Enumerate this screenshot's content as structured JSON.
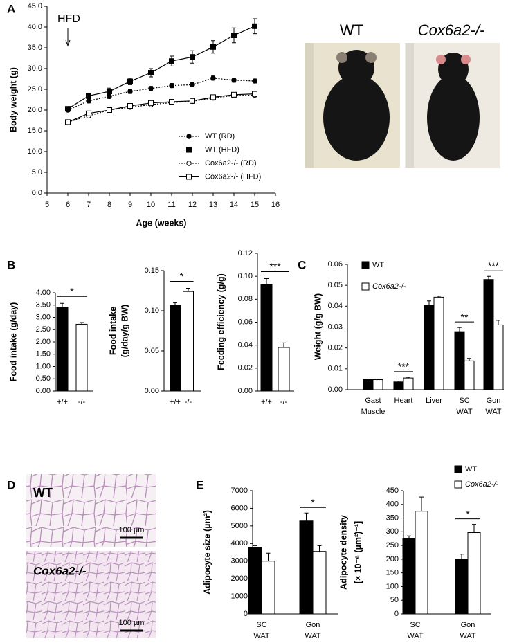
{
  "chart_data": [
    {
      "type": "line",
      "panel": "A",
      "xlabel": "Age (weeks)",
      "ylabel": "Body weight (g)",
      "annotation": "HFD",
      "xlim": [
        5,
        16
      ],
      "xticks": [
        5,
        6,
        7,
        8,
        9,
        10,
        11,
        12,
        13,
        14,
        15,
        16
      ],
      "ylim": [
        0,
        45
      ],
      "yticks": [
        {
          "value": 0,
          "label": "0.0"
        },
        {
          "value": 5,
          "label": "5.0"
        },
        {
          "value": 10,
          "label": "10.0"
        },
        {
          "value": 15,
          "label": "15.0"
        },
        {
          "value": 20,
          "label": "20.0"
        },
        {
          "value": 25,
          "label": "25.0"
        },
        {
          "value": 30,
          "label": "30.0"
        },
        {
          "value": 35,
          "label": "35.0"
        },
        {
          "value": 40,
          "label": "40.0"
        },
        {
          "value": 45,
          "label": "45.0"
        }
      ],
      "x": [
        6,
        7,
        8,
        9,
        10,
        11,
        12,
        13,
        14,
        15
      ],
      "series": [
        {
          "name": "WT (RD)",
          "color": "#000000",
          "marker": "circle",
          "filled": true,
          "dashed": true,
          "values": [
            20.0,
            22.2,
            23.3,
            24.5,
            25.2,
            25.9,
            26.1,
            27.7,
            27.2,
            27.0
          ],
          "errors": [
            0.4,
            0.5,
            0.5,
            0.5,
            0.5,
            0.5,
            0.5,
            0.5,
            0.5,
            0.5
          ]
        },
        {
          "name": "WT (HFD)",
          "color": "#000000",
          "marker": "square",
          "filled": true,
          "dashed": false,
          "values": [
            20.3,
            23.4,
            24.5,
            26.9,
            29.0,
            31.8,
            32.8,
            35.2,
            38.0,
            40.2
          ],
          "errors": [
            0.4,
            0.6,
            0.8,
            0.8,
            1.0,
            1.2,
            1.5,
            1.5,
            1.8,
            1.8
          ]
        },
        {
          "name": "Cox6a2-/- (RD)",
          "color": "#000000",
          "marker": "circle",
          "filled": false,
          "dashed": true,
          "values": [
            17.1,
            18.6,
            20.0,
            20.7,
            21.3,
            21.8,
            22.1,
            22.9,
            23.5,
            23.6
          ],
          "errors": [
            0.3,
            0.4,
            0.4,
            0.4,
            0.4,
            0.4,
            0.4,
            0.4,
            0.4,
            0.4
          ]
        },
        {
          "name": "Cox6a2-/- (HFD)",
          "color": "#000000",
          "marker": "square",
          "filled": false,
          "dashed": false,
          "values": [
            17.1,
            19.2,
            20.0,
            21.0,
            21.7,
            22.0,
            22.2,
            23.1,
            23.7,
            23.9
          ],
          "errors": [
            0.3,
            0.5,
            0.4,
            0.4,
            0.5,
            0.5,
            0.5,
            0.5,
            0.5,
            0.5
          ]
        }
      ]
    },
    {
      "type": "bar",
      "panel": "B",
      "ylabel": [
        "Food intake (g/day)"
      ],
      "significance": "*",
      "categories": [
        [
          "+/+"
        ],
        [
          "-/-"
        ]
      ],
      "values": [
        3.42,
        2.72
      ],
      "errors": [
        0.15,
        0.07
      ],
      "colors": [
        "#000000",
        "#ffffff"
      ],
      "ylim": [
        0,
        4
      ],
      "yticks": [
        {
          "value": 0,
          "label": "0.00"
        },
        {
          "value": 0.5,
          "label": "0.50"
        },
        {
          "value": 1,
          "label": "1.00"
        },
        {
          "value": 1.5,
          "label": "1.50"
        },
        {
          "value": 2,
          "label": "2.00"
        },
        {
          "value": 2.5,
          "label": "2.50"
        },
        {
          "value": 3,
          "label": "3.00"
        },
        {
          "value": 3.5,
          "label": "3.50"
        },
        {
          "value": 4,
          "label": "4.00"
        }
      ]
    },
    {
      "type": "bar",
      "ylabel": [
        "Food intake",
        "(g/day/g BW)"
      ],
      "significance": "*",
      "categories": [
        [
          "+/+"
        ],
        [
          "-/-"
        ]
      ],
      "values": [
        0.107,
        0.124
      ],
      "errors": [
        0.003,
        0.004
      ],
      "colors": [
        "#000000",
        "#ffffff"
      ],
      "ylim": [
        0,
        0.15
      ],
      "yticks": [
        {
          "value": 0,
          "label": "0.00"
        },
        {
          "value": 0.05,
          "label": "0.05"
        },
        {
          "value": 0.1,
          "label": "0.10"
        },
        {
          "value": 0.15,
          "label": "0.15"
        }
      ]
    },
    {
      "type": "bar",
      "ylabel": [
        "Feeding efficiency (g/g)"
      ],
      "significance": "***",
      "categories": [
        [
          "+/+"
        ],
        [
          "-/-"
        ]
      ],
      "values": [
        0.093,
        0.038
      ],
      "errors": [
        0.005,
        0.004
      ],
      "colors": [
        "#000000",
        "#ffffff"
      ],
      "ylim": [
        0,
        0.12
      ],
      "yticks": [
        {
          "value": 0,
          "label": "0.00"
        },
        {
          "value": 0.02,
          "label": "0.02"
        },
        {
          "value": 0.04,
          "label": "0.04"
        },
        {
          "value": 0.06,
          "label": "0.06"
        },
        {
          "value": 0.08,
          "label": "0.08"
        },
        {
          "value": 0.1,
          "label": "0.10"
        },
        {
          "value": 0.12,
          "label": "0.12"
        }
      ]
    },
    {
      "type": "grouped-bar",
      "panel": "C",
      "ylabel": [
        "Weight (g/g BW)"
      ],
      "categories": [
        [
          "Gast",
          "Muscle"
        ],
        [
          "Heart"
        ],
        [
          "Liver"
        ],
        [
          "SC",
          "WAT"
        ],
        [
          "Gon",
          "WAT"
        ]
      ],
      "significance": [
        null,
        "***",
        null,
        "**",
        "***"
      ],
      "series": [
        {
          "name": "WT",
          "color": "#000000",
          "values": [
            0.0048,
            0.0037,
            0.0405,
            0.0278,
            0.0528
          ],
          "errors": [
            0.0003,
            0.0004,
            0.002,
            0.002,
            0.0015
          ]
        },
        {
          "name": "Cox6a2-/-",
          "color": "#ffffff",
          "values": [
            0.0048,
            0.0056,
            0.0443,
            0.0138,
            0.031
          ],
          "errors": [
            0.0003,
            0.0004,
            0.0005,
            0.0012,
            0.0022
          ]
        }
      ],
      "ylim": [
        0,
        0.06
      ],
      "yticks": [
        {
          "value": 0,
          "label": "0.00"
        },
        {
          "value": 0.01,
          "label": "0.01"
        },
        {
          "value": 0.02,
          "label": "0.02"
        },
        {
          "value": 0.03,
          "label": "0.03"
        },
        {
          "value": 0.04,
          "label": "0.04"
        },
        {
          "value": 0.05,
          "label": "0.05"
        },
        {
          "value": 0.06,
          "label": "0.06"
        }
      ]
    },
    {
      "type": "grouped-bar",
      "panel": "E",
      "ylabel": [
        "Adipocyte size (µm²)"
      ],
      "categories": [
        [
          "SC",
          "WAT"
        ],
        [
          "Gon",
          "WAT"
        ]
      ],
      "significance": [
        null,
        "*"
      ],
      "series": [
        {
          "color": "#000000",
          "values": [
            3780,
            5280
          ],
          "errors": [
            100,
            450
          ]
        },
        {
          "color": "#ffffff",
          "values": [
            3000,
            3550
          ],
          "errors": [
            450,
            330
          ]
        }
      ],
      "ylim": [
        0,
        7000
      ],
      "yticks": [
        0,
        1000,
        2000,
        3000,
        4000,
        5000,
        6000,
        7000
      ]
    },
    {
      "type": "grouped-bar",
      "ylabel": [
        "Adipocyte density",
        "[× 10⁻⁶ (µm²)⁻¹]"
      ],
      "categories": [
        [
          "SC",
          "WAT"
        ],
        [
          "Gon",
          "WAT"
        ]
      ],
      "significance": [
        null,
        "*"
      ],
      "series": [
        {
          "name": "WT",
          "color": "#000000",
          "values": [
            275,
            200
          ],
          "errors": [
            10,
            18
          ]
        },
        {
          "name": "Cox6a2-/-",
          "color": "#ffffff",
          "values": [
            375,
            297
          ],
          "errors": [
            52,
            30
          ]
        }
      ],
      "ylim": [
        0,
        450
      ],
      "yticks": [
        0,
        50,
        100,
        150,
        200,
        250,
        300,
        350,
        400,
        450
      ]
    }
  ],
  "photos": {
    "labels": [
      "WT",
      "Cox6a2-/-"
    ]
  },
  "histology": {
    "panel": "D",
    "labels": [
      "WT",
      "Cox6a2-/-"
    ],
    "scale_bars": [
      "100 µm",
      "100 µm"
    ]
  }
}
